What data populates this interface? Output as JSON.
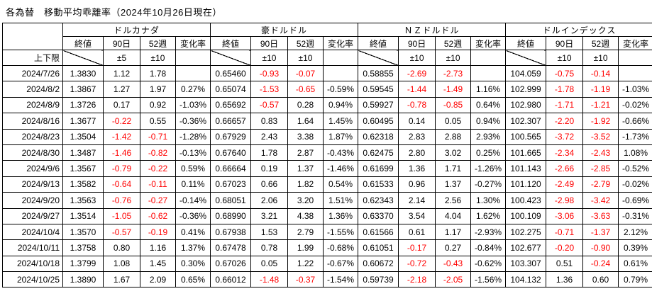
{
  "title": "各為替　移動平均乖離率（2024年10月26日現在）",
  "colors": {
    "negative_value": "#ff0000",
    "text": "#000000",
    "grid": "#000000",
    "background": "#ffffff"
  },
  "table": {
    "row_label_header": "上下限",
    "sub_headers": [
      "終値",
      "90日",
      "52週",
      "変化率"
    ],
    "groups": [
      {
        "name": "ドルカナダ",
        "limits": {
          "d90": "±5",
          "w52": "±10"
        }
      },
      {
        "name": "豪ドルドル",
        "limits": {
          "d90": "±10",
          "w52": "±10"
        }
      },
      {
        "name": "ＮＺドルドル",
        "limits": {
          "d90": "±10",
          "w52": "±10"
        }
      },
      {
        "name": "ドルインデックス",
        "limits": {
          "d90": "±10",
          "w52": "±10"
        }
      }
    ],
    "rows": [
      {
        "date": "2024/7/26",
        "cells": [
          [
            "1.3830",
            "1.12",
            "1.78",
            ""
          ],
          [
            "0.65460",
            "-0.93",
            "-0.07",
            ""
          ],
          [
            "0.58855",
            "-2.69",
            "-2.73",
            ""
          ],
          [
            "104.059",
            "-0.75",
            "-0.14",
            ""
          ]
        ]
      },
      {
        "date": "2024/8/2",
        "cells": [
          [
            "1.3867",
            "1.27",
            "1.97",
            "0.27%"
          ],
          [
            "0.65074",
            "-1.53",
            "-0.65",
            "-0.59%"
          ],
          [
            "0.59545",
            "-1.44",
            "-1.49",
            "1.16%"
          ],
          [
            "102.999",
            "-1.78",
            "-1.19",
            "-1.03%"
          ]
        ]
      },
      {
        "date": "2024/8/9",
        "cells": [
          [
            "1.3726",
            "0.17",
            "0.92",
            "-1.03%"
          ],
          [
            "0.65692",
            "-0.57",
            "0.28",
            "0.94%"
          ],
          [
            "0.59927",
            "-0.78",
            "-0.85",
            "0.64%"
          ],
          [
            "102.980",
            "-1.71",
            "-1.21",
            "-0.02%"
          ]
        ]
      },
      {
        "date": "2024/8/16",
        "cells": [
          [
            "1.3677",
            "-0.22",
            "0.55",
            "-0.36%"
          ],
          [
            "0.66657",
            "0.83",
            "1.64",
            "1.45%"
          ],
          [
            "0.60495",
            "0.14",
            "0.05",
            "0.94%"
          ],
          [
            "102.307",
            "-2.20",
            "-1.92",
            "-0.66%"
          ]
        ]
      },
      {
        "date": "2024/8/23",
        "cells": [
          [
            "1.3504",
            "-1.42",
            "-0.71",
            "-1.28%"
          ],
          [
            "0.67929",
            "2.43",
            "3.38",
            "1.87%"
          ],
          [
            "0.62318",
            "2.83",
            "2.88",
            "2.93%"
          ],
          [
            "100.565",
            "-3.72",
            "-3.52",
            "-1.73%"
          ]
        ]
      },
      {
        "date": "2024/8/30",
        "cells": [
          [
            "1.3487",
            "-1.46",
            "-0.82",
            "-0.13%"
          ],
          [
            "0.67640",
            "1.78",
            "2.87",
            "-0.43%"
          ],
          [
            "0.62475",
            "2.80",
            "3.02",
            "0.25%"
          ],
          [
            "101.665",
            "-2.34",
            "-2.43",
            "1.08%"
          ]
        ]
      },
      {
        "date": "2024/9/6",
        "cells": [
          [
            "1.3567",
            "-0.79",
            "-0.22",
            "0.59%"
          ],
          [
            "0.66664",
            "0.19",
            "1.37",
            "-1.46%"
          ],
          [
            "0.61699",
            "1.36",
            "1.71",
            "-1.26%"
          ],
          [
            "101.143",
            "-2.66",
            "-2.85",
            "-0.52%"
          ]
        ]
      },
      {
        "date": "2024/9/13",
        "cells": [
          [
            "1.3582",
            "-0.64",
            "-0.11",
            "0.11%"
          ],
          [
            "0.67023",
            "0.66",
            "1.82",
            "0.54%"
          ],
          [
            "0.61533",
            "0.96",
            "1.37",
            "-0.27%"
          ],
          [
            "101.120",
            "-2.49",
            "-2.79",
            "-0.02%"
          ]
        ]
      },
      {
        "date": "2024/9/20",
        "cells": [
          [
            "1.3563",
            "-0.76",
            "-0.27",
            "-0.14%"
          ],
          [
            "0.68051",
            "2.06",
            "3.20",
            "1.51%"
          ],
          [
            "0.62343",
            "2.14",
            "2.56",
            "1.30%"
          ],
          [
            "100.423",
            "-2.98",
            "-3.42",
            "-0.69%"
          ]
        ]
      },
      {
        "date": "2024/9/27",
        "cells": [
          [
            "1.3514",
            "-1.05",
            "-0.62",
            "-0.36%"
          ],
          [
            "0.68990",
            "3.21",
            "4.38",
            "1.36%"
          ],
          [
            "0.63370",
            "3.54",
            "4.04",
            "1.62%"
          ],
          [
            "100.109",
            "-3.06",
            "-3.63",
            "-0.31%"
          ]
        ]
      },
      {
        "date": "2024/10/4",
        "cells": [
          [
            "1.3570",
            "-0.57",
            "-0.19",
            "0.41%"
          ],
          [
            "0.67938",
            "1.53",
            "2.79",
            "-1.55%"
          ],
          [
            "0.61566",
            "0.61",
            "1.17",
            "-2.93%"
          ],
          [
            "102.275",
            "-0.71",
            "-1.37",
            "2.12%"
          ]
        ]
      },
      {
        "date": "2024/10/11",
        "cells": [
          [
            "1.3758",
            "0.80",
            "1.16",
            "1.37%"
          ],
          [
            "0.67478",
            "0.78",
            "1.99",
            "-0.68%"
          ],
          [
            "0.61051",
            "-0.17",
            "0.27",
            "-0.84%"
          ],
          [
            "102.677",
            "-0.20",
            "-0.90",
            "0.39%"
          ]
        ]
      },
      {
        "date": "2024/10/18",
        "cells": [
          [
            "1.3799",
            "1.08",
            "1.45",
            "0.30%"
          ],
          [
            "0.67026",
            "0.05",
            "1.22",
            "-0.67%"
          ],
          [
            "0.60672",
            "-0.72",
            "-0.43",
            "-0.62%"
          ],
          [
            "103.307",
            "0.51",
            "-0.24",
            "0.61%"
          ]
        ]
      },
      {
        "date": "2024/10/25",
        "cells": [
          [
            "1.3890",
            "1.67",
            "2.09",
            "0.65%"
          ],
          [
            "0.66012",
            "-1.48",
            "-0.37",
            "-1.54%"
          ],
          [
            "0.59739",
            "-2.18",
            "-2.05",
            "-1.56%"
          ],
          [
            "104.132",
            "1.36",
            "0.60",
            "0.79%"
          ]
        ]
      }
    ]
  }
}
